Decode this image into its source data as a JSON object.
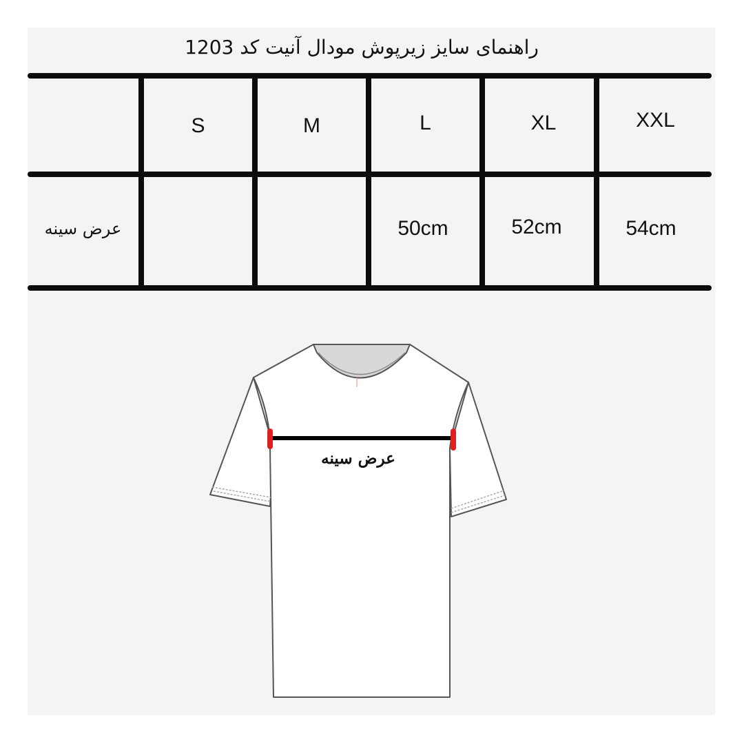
{
  "title": "راهنمای سایز زیرپوش مودال آنیت کد 1203",
  "table": {
    "headers": [
      "",
      "S",
      "M",
      "L",
      "XL",
      "XXL"
    ],
    "rows": [
      {
        "label": "عرض سینه",
        "values": [
          "",
          "",
          "50cm",
          "52cm",
          "54cm"
        ]
      }
    ]
  },
  "diagram": {
    "measure_label": "عرض سینه",
    "marker_color": "#e02020",
    "line_color": "#000000"
  }
}
